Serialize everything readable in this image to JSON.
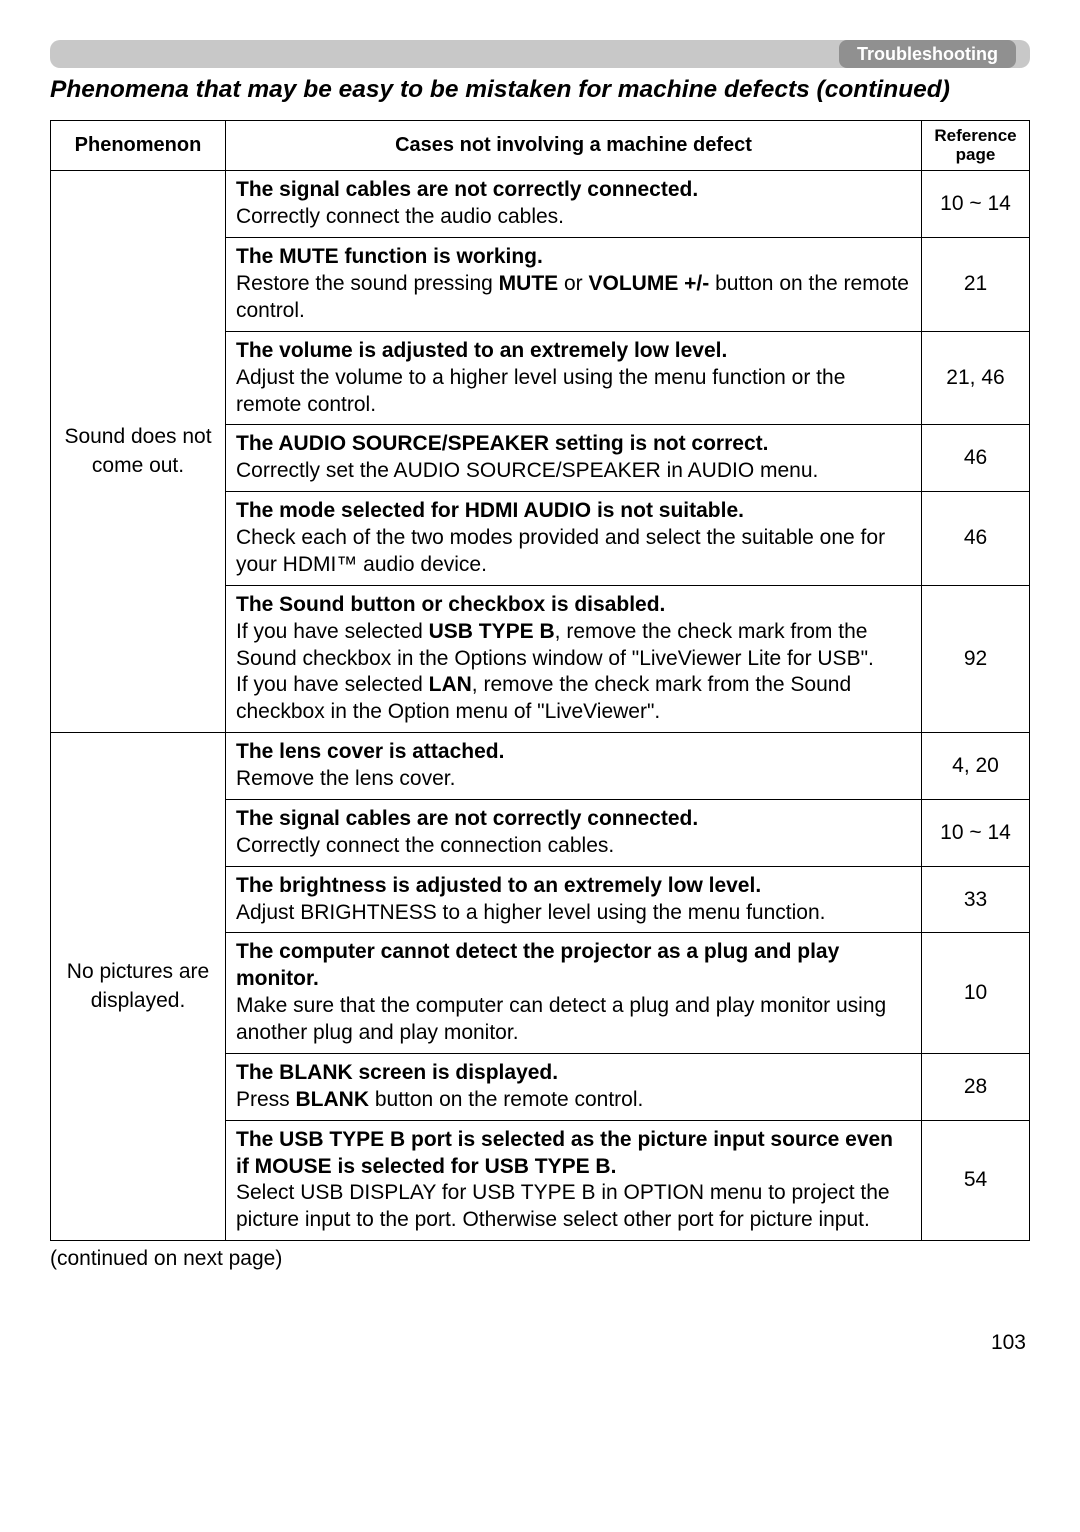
{
  "header": {
    "tag": "Troubleshooting"
  },
  "section_title": "Phenomena that may be easy to be mistaken for machine defects (continued)",
  "table": {
    "headers": {
      "phenomenon": "Phenomenon",
      "cases": "Cases not involving a machine defect",
      "reference": "Reference page"
    },
    "groups": [
      {
        "phenomenon": "Sound does not come out.",
        "rows": [
          {
            "title": "The signal cables are not correctly connected.",
            "body": "Correctly connect the audio cables.",
            "ref": "10 ~ 14"
          },
          {
            "title": "The MUTE function is working.",
            "body_html": "Restore the sound pressing <span class=\"b\">MUTE</span> or <span class=\"b\">VOLUME +/-</span> button on the remote control.",
            "ref": "21"
          },
          {
            "title": "The volume is adjusted to an extremely low level.",
            "body": "Adjust the volume to a higher level using the menu function or the remote control.",
            "ref": "21, 46"
          },
          {
            "title": "The AUDIO SOURCE/SPEAKER setting is not correct.",
            "body": "Correctly set the AUDIO SOURCE/SPEAKER in AUDIO menu.",
            "ref": "46"
          },
          {
            "title": "The mode selected for HDMI AUDIO is not suitable.",
            "body": "Check each of the two modes provided and select the suitable one for your HDMI™ audio device.",
            "ref": "46"
          },
          {
            "title": "The Sound button or checkbox is disabled.",
            "body_html": "If you have selected <span class=\"b\">USB TYPE B</span>, remove the check mark from the Sound checkbox in the Options window of \"LiveViewer Lite for USB\".<br>If you have selected <span class=\"b\">LAN</span>, remove the check mark from the Sound checkbox in the Option menu of \"LiveViewer\".",
            "ref": "92"
          }
        ]
      },
      {
        "phenomenon": "No pictures are displayed.",
        "rows": [
          {
            "title": "The lens cover is attached.",
            "body": "Remove the lens cover.",
            "ref": "4, 20"
          },
          {
            "title": "The signal cables are not correctly connected.",
            "body": "Correctly connect the connection cables.",
            "ref": "10 ~ 14"
          },
          {
            "title": "The brightness is adjusted to an extremely low level.",
            "body": "Adjust BRIGHTNESS to a higher level using the menu function.",
            "ref": "33"
          },
          {
            "title": "The computer cannot detect the projector as a plug and play monitor.",
            "body": "Make sure that the computer can detect a plug and play monitor using another plug and play monitor.",
            "ref": "10"
          },
          {
            "title": "The BLANK screen is displayed.",
            "body_html": "Press <span class=\"b\">BLANK</span> button on the remote control.",
            "ref": "28"
          },
          {
            "title": "The USB TYPE B port is selected as the picture input source even if MOUSE is selected for USB TYPE B.",
            "body": "Select USB DISPLAY for USB TYPE B in OPTION menu to project the picture input to the port. Otherwise select other port for picture input.",
            "ref": "54"
          }
        ]
      }
    ]
  },
  "continued_note": "(continued on next page)",
  "page_number": "103"
}
